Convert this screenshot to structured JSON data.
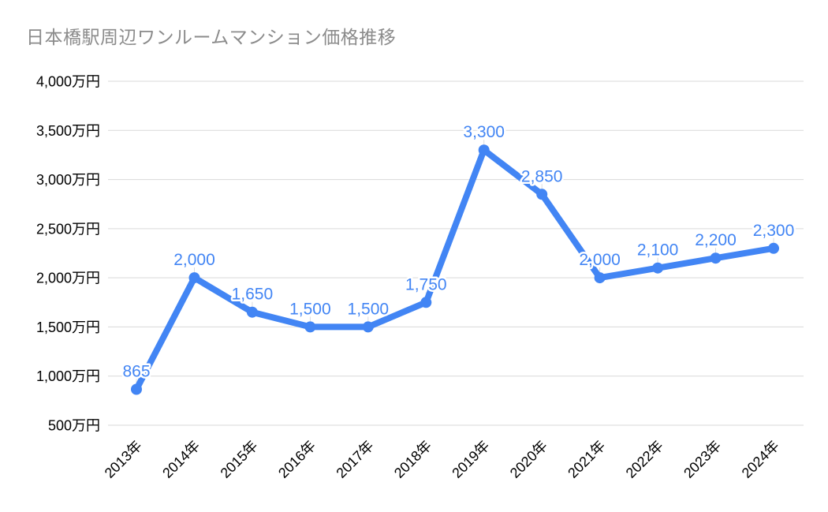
{
  "chart_data": {
    "type": "line",
    "title": "日本橋駅周辺ワンルームマンション価格推移",
    "categories": [
      "2013年",
      "2014年",
      "2015年",
      "2016年",
      "2017年",
      "2018年",
      "2019年",
      "2020年",
      "2021年",
      "2022年",
      "2023年",
      "2024年"
    ],
    "values": [
      865,
      2000,
      1650,
      1500,
      1500,
      1750,
      3300,
      2850,
      2000,
      2100,
      2200,
      2300
    ],
    "point_labels": [
      "865",
      "2,000",
      "1,650",
      "1,500",
      "1,500",
      "1,750",
      "3,300",
      "2,850",
      "2,000",
      "2,100",
      "2,200",
      "2,300"
    ],
    "y_ticks": [
      {
        "value": 4000,
        "label": "4,000万円"
      },
      {
        "value": 3500,
        "label": "3,500万円"
      },
      {
        "value": 3000,
        "label": "3,000万円"
      },
      {
        "value": 2500,
        "label": "2,500万円"
      },
      {
        "value": 2000,
        "label": "2,000万円"
      },
      {
        "value": 1500,
        "label": "1,500万円"
      },
      {
        "value": 1000,
        "label": "1,000万円"
      },
      {
        "value": 500,
        "label": "500万円"
      }
    ],
    "ylim": [
      500,
      4000
    ],
    "xlabel": "",
    "ylabel": "",
    "grid": "horizontal",
    "legend": "none",
    "colors": {
      "series": "#4285f4",
      "grid": "#d9d9d9",
      "leader": "#dadce0",
      "axis_text": "#000000",
      "title": "#8b8b8b",
      "label_halo": "#ffffff",
      "background": "#ffffff"
    }
  }
}
